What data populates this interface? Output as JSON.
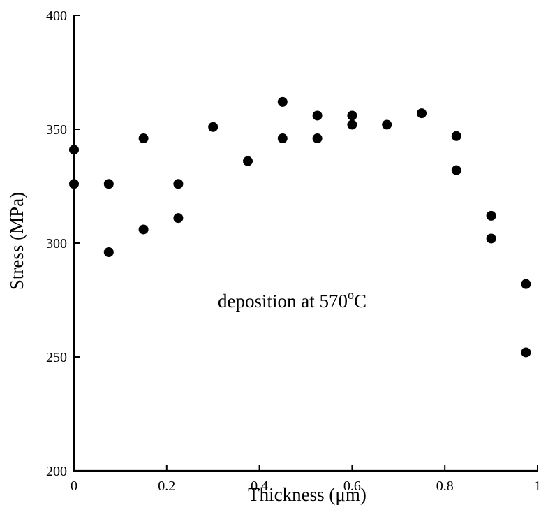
{
  "chart_data": {
    "type": "scatter",
    "xlabel": "Thickness (μm)",
    "ylabel": "Stress (MPa)",
    "xlim": [
      0,
      1
    ],
    "ylim": [
      200,
      400
    ],
    "x_ticks": [
      0,
      0.2,
      0.4,
      0.6,
      0.8,
      1
    ],
    "x_tick_labels": [
      "0",
      "0.2",
      "0.4",
      "0.6",
      "0.8",
      "1"
    ],
    "y_ticks": [
      200,
      250,
      300,
      350,
      400
    ],
    "y_tick_labels": [
      "200",
      "250",
      "300",
      "350",
      "400"
    ],
    "grid": false,
    "annotation": {
      "text_main": "deposition at 570",
      "text_sup": "o",
      "text_end": "C"
    },
    "series": [
      {
        "marker_color": "#000000",
        "points": [
          {
            "x": 0.0,
            "y": 341
          },
          {
            "x": 0.0,
            "y": 326
          },
          {
            "x": 0.075,
            "y": 326
          },
          {
            "x": 0.075,
            "y": 296
          },
          {
            "x": 0.15,
            "y": 346
          },
          {
            "x": 0.15,
            "y": 306
          },
          {
            "x": 0.225,
            "y": 326
          },
          {
            "x": 0.225,
            "y": 311
          },
          {
            "x": 0.3,
            "y": 351
          },
          {
            "x": 0.375,
            "y": 336
          },
          {
            "x": 0.45,
            "y": 362
          },
          {
            "x": 0.45,
            "y": 346
          },
          {
            "x": 0.525,
            "y": 356
          },
          {
            "x": 0.525,
            "y": 346
          },
          {
            "x": 0.6,
            "y": 356
          },
          {
            "x": 0.6,
            "y": 352
          },
          {
            "x": 0.675,
            "y": 352
          },
          {
            "x": 0.75,
            "y": 357
          },
          {
            "x": 0.825,
            "y": 347
          },
          {
            "x": 0.825,
            "y": 332
          },
          {
            "x": 0.9,
            "y": 312
          },
          {
            "x": 0.9,
            "y": 302
          },
          {
            "x": 0.975,
            "y": 282
          },
          {
            "x": 0.975,
            "y": 252
          }
        ]
      }
    ]
  }
}
